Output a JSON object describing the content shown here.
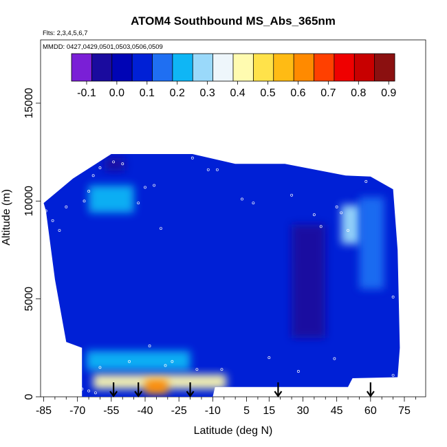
{
  "chart_data": {
    "type": "heatmap",
    "title": "ATOM4 Southbound MS_Abs_365nm",
    "flights_note": "Flts: 2,3,4,5,6,7",
    "dates_note": "MMDD: 0427,0429,0501,0503,0506,0509",
    "xlabel": "Latitude (deg N)",
    "ylabel": "Altitude (m)",
    "xlim": [
      -88,
      88
    ],
    "ylim": [
      0,
      17500
    ],
    "x_ticks": [
      -85,
      -70,
      -55,
      -40,
      -25,
      -10,
      5,
      15,
      30,
      45,
      60,
      75
    ],
    "x_tick_labels": [
      "-85",
      "-70",
      "-55",
      "-40",
      "-25",
      "-10",
      "5",
      "15",
      "30",
      "45",
      "60",
      "75"
    ],
    "y_ticks": [
      0,
      5000,
      10000,
      15000
    ],
    "y_tick_labels": [
      "0",
      "5000",
      "10000",
      "15000"
    ],
    "colorbar": {
      "min": -0.15,
      "max": 0.92,
      "ticks": [
        -0.1,
        0.0,
        0.1,
        0.2,
        0.3,
        0.4,
        0.5,
        0.6,
        0.7,
        0.8,
        0.9
      ],
      "tick_labels": [
        "-0.1",
        "0.0",
        "0.1",
        "0.2",
        "0.3",
        "0.4",
        "0.5",
        "0.6",
        "0.7",
        "0.8",
        "0.9"
      ],
      "colors": [
        "#7a1fd6",
        "#1a0b9e",
        "#0004b5",
        "#0020d6",
        "#1f6ff2",
        "#0fb6f5",
        "#9ad9fa",
        "#eef6fb",
        "#fffbb0",
        "#ffe24a",
        "#ffbb14",
        "#ff8a00",
        "#ff4000",
        "#ef0000",
        "#c80000",
        "#8b1010"
      ]
    },
    "background_value": 0.07,
    "swath_polygon": [
      [
        -85,
        9900
      ],
      [
        -72,
        11150
      ],
      [
        -55,
        12400
      ],
      [
        -19,
        12400
      ],
      [
        0,
        11900
      ],
      [
        22,
        11900
      ],
      [
        49,
        11300
      ],
      [
        60,
        11250
      ],
      [
        70,
        10600
      ],
      [
        72,
        7500
      ],
      [
        73,
        2500
      ],
      [
        72,
        1000
      ],
      [
        52,
        950
      ],
      [
        50,
        500
      ],
      [
        -9,
        500
      ],
      [
        -10,
        0
      ],
      [
        -68,
        0
      ],
      [
        -68,
        2500
      ],
      [
        -75,
        2800
      ],
      [
        -80,
        6000
      ],
      [
        -84,
        9500
      ]
    ],
    "features": [
      {
        "lat_range": [
          -58,
          -49
        ],
        "alt_range": [
          11550,
          12200
        ],
        "value": -0.05
      },
      {
        "lat_range": [
          -65,
          -45
        ],
        "alt_range": [
          9400,
          10800
        ],
        "value": 0.2
      },
      {
        "lat_range": [
          -66,
          -20
        ],
        "alt_range": [
          1350,
          2350
        ],
        "value": 0.22
      },
      {
        "lat_range": [
          -63,
          -4
        ],
        "alt_range": [
          400,
          1150
        ],
        "value": 0.45
      },
      {
        "lat_range": [
          -40,
          -30
        ],
        "alt_range": [
          150,
          900
        ],
        "value": 0.62
      },
      {
        "lat_range": [
          47,
          56
        ],
        "alt_range": [
          7800,
          9800
        ],
        "value": 0.28
      },
      {
        "lat_range": [
          25,
          40
        ],
        "alt_range": [
          3000,
          8800
        ],
        "value": -0.05
      },
      {
        "lat_range": [
          55,
          66
        ],
        "alt_range": [
          5500,
          10200
        ],
        "value": 0.16
      }
    ],
    "profile_arrows_lat": [
      -54,
      -43,
      -20,
      19,
      60
    ],
    "sample_points": [
      [
        -84,
        9500
      ],
      [
        -81,
        9000
      ],
      [
        -78,
        8500
      ],
      [
        -75,
        9700
      ],
      [
        -67,
        10000
      ],
      [
        -65,
        10500
      ],
      [
        -63,
        11300
      ],
      [
        -60,
        11700
      ],
      [
        -54,
        12000
      ],
      [
        -50,
        11900
      ],
      [
        -43,
        9900
      ],
      [
        -40,
        10700
      ],
      [
        -36,
        10800
      ],
      [
        -33,
        8600
      ],
      [
        -19,
        12200
      ],
      [
        -12,
        11600
      ],
      [
        -8,
        11600
      ],
      [
        3,
        10100
      ],
      [
        8,
        9900
      ],
      [
        25,
        10300
      ],
      [
        35,
        9300
      ],
      [
        38,
        8700
      ],
      [
        45,
        9700
      ],
      [
        47,
        9400
      ],
      [
        50,
        8500
      ],
      [
        58,
        11000
      ],
      [
        66,
        11300
      ],
      [
        70,
        5100
      ],
      [
        70,
        1100
      ],
      [
        15,
        2000
      ],
      [
        28,
        1300
      ],
      [
        44,
        1950
      ],
      [
        -69,
        1000
      ],
      [
        -68,
        400
      ],
      [
        -65,
        300
      ],
      [
        -62,
        200
      ],
      [
        -60,
        1500
      ],
      [
        -47,
        1800
      ],
      [
        -38,
        2600
      ],
      [
        -28,
        1800
      ],
      [
        -17,
        1400
      ],
      [
        -6,
        1400
      ],
      [
        2,
        200
      ],
      [
        12,
        350
      ],
      [
        -31,
        1600
      ],
      [
        -72,
        1900
      ]
    ]
  }
}
